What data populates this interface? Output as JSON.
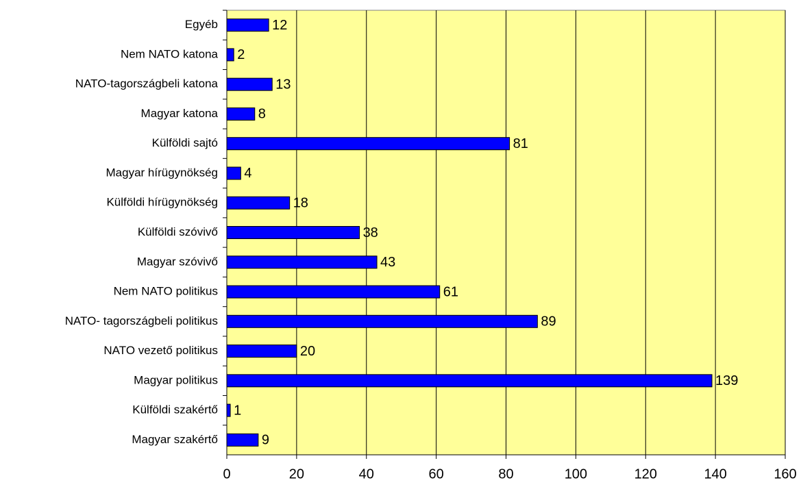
{
  "chart_data": {
    "type": "bar",
    "orientation": "horizontal",
    "categories": [
      "Egyéb",
      "Nem NATO katona",
      "NATO-tagországbeli katona",
      "Magyar katona",
      "Külföldi sajtó",
      "Magyar hírügynökség",
      "Külföldi hírügynökség",
      "Külföldi szóvivő",
      "Magyar szóvivő",
      "Nem NATO politikus",
      "NATO- tagországbeli politikus",
      "NATO vezető politikus",
      "Magyar politikus",
      "Külföldi szakértő",
      "Magyar szakértő"
    ],
    "values": [
      12,
      2,
      13,
      8,
      81,
      4,
      18,
      38,
      43,
      61,
      89,
      20,
      139,
      1,
      9
    ],
    "color": "#0000ff",
    "plot_background": "#ffff99",
    "xlim": [
      0,
      160
    ],
    "xticks": [
      0,
      20,
      40,
      60,
      80,
      100,
      120,
      140,
      160
    ],
    "grid": true
  }
}
